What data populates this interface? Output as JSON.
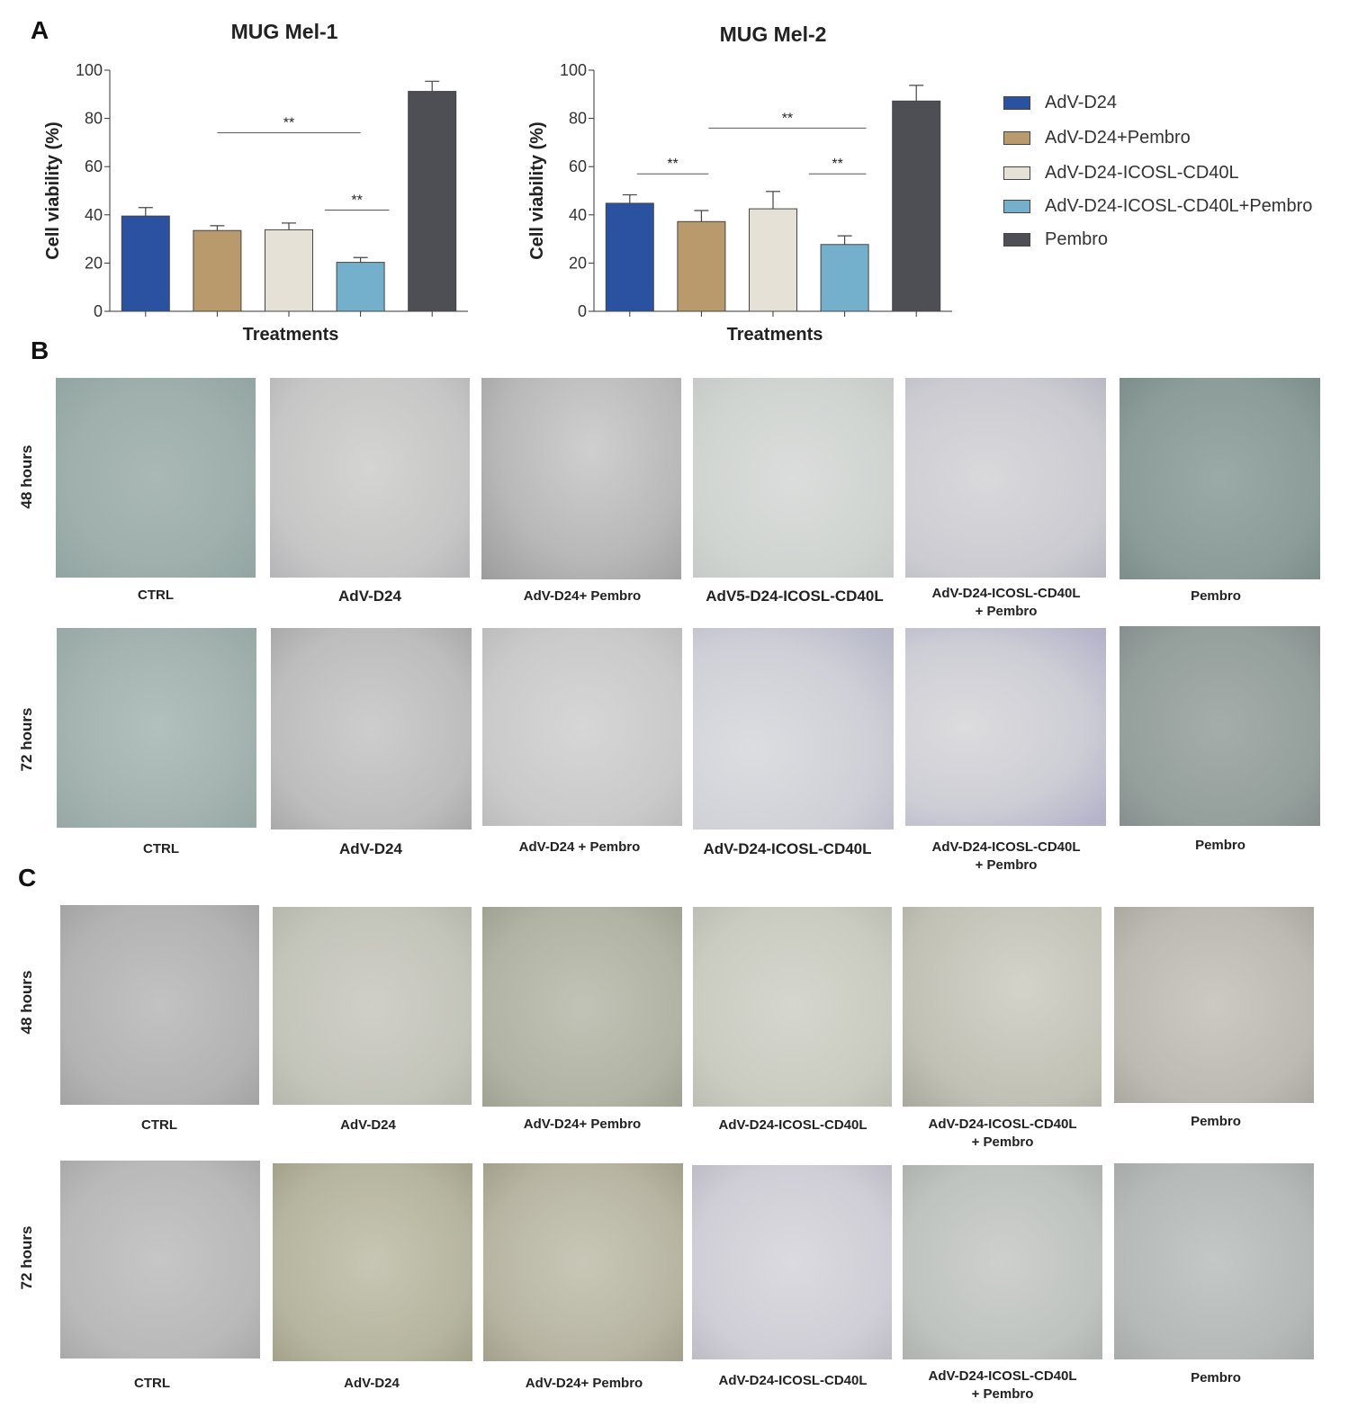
{
  "panel_letters": {
    "a": "A",
    "b": "B",
    "c": "C"
  },
  "chart_data": [
    {
      "type": "bar",
      "title": "MUG Mel-1",
      "xlabel": "Treatments",
      "ylabel": "Cell viability (%)",
      "ylim": [
        0,
        100
      ],
      "yticks": [
        0,
        20,
        40,
        60,
        80,
        100
      ],
      "categories": [
        "AdV-D24",
        "AdV-D24+Pembro",
        "AdV-D24-ICOSL-CD40L",
        "AdV-D24-ICOSL-CD40L+Pembro",
        "Pembro"
      ],
      "values": [
        39.5,
        33.5,
        33.8,
        20.3,
        91.2
      ],
      "errors": [
        3.5,
        2.0,
        2.8,
        2.0,
        4.2
      ],
      "colors": [
        "#2b52a0",
        "#b89a6c",
        "#e6e1d7",
        "#74b0cc",
        "#4d4f54"
      ],
      "significance": [
        {
          "from": 1,
          "to": 3,
          "y": 74,
          "label": "**"
        },
        {
          "from": 2.5,
          "to": 3.4,
          "y": 42,
          "label": "**"
        }
      ]
    },
    {
      "type": "bar",
      "title": "MUG Mel-2",
      "xlabel": "Treatments",
      "ylabel": "Cell viability (%)",
      "ylim": [
        0,
        100
      ],
      "yticks": [
        0,
        20,
        40,
        60,
        80,
        100
      ],
      "categories": [
        "AdV-D24",
        "AdV-D24+Pembro",
        "AdV-D24-ICOSL-CD40L",
        "AdV-D24-ICOSL-CD40L+Pembro",
        "Pembro"
      ],
      "values": [
        44.8,
        37.2,
        42.5,
        27.7,
        87.2
      ],
      "errors": [
        3.5,
        4.6,
        7.2,
        3.6,
        6.5
      ],
      "colors": [
        "#2b52a0",
        "#b89a6c",
        "#e6e1d7",
        "#74b0cc",
        "#4d4f54"
      ],
      "significance": [
        {
          "from": 0.1,
          "to": 1.1,
          "y": 57,
          "label": "**"
        },
        {
          "from": 1.1,
          "to": 3.3,
          "y": 76,
          "label": "**"
        },
        {
          "from": 2.5,
          "to": 3.3,
          "y": 57,
          "label": "**"
        }
      ]
    }
  ],
  "legend": [
    {
      "label": "AdV-D24",
      "color": "#2b52a0"
    },
    {
      "label": "AdV-D24+Pembro",
      "color": "#b89a6c"
    },
    {
      "label": "AdV-D24-ICOSL-CD40L",
      "color": "#e6e1d7"
    },
    {
      "label": "AdV-D24-ICOSL-CD40L+Pembro",
      "color": "#74b0cc"
    },
    {
      "label": "Pembro",
      "color": "#4d4f54"
    }
  ],
  "panel_b": {
    "row_48_label": "48 hours",
    "row_72_label": "72 hours",
    "row_48_captions": [
      "CTRL",
      "AdV-D24",
      "AdV-D24+ Pembro",
      "AdV5-D24-ICOSL-CD40L",
      "AdV-D24-ICOSL-CD40L\n+ Pembro",
      "Pembro"
    ],
    "row_72_captions": [
      "CTRL",
      "AdV-D24",
      "AdV-D24 + Pembro",
      "AdV-D24-ICOSL-CD40L",
      "AdV-D24-ICOSL-CD40L\n+ Pembro",
      "Pembro"
    ]
  },
  "panel_c": {
    "row_48_label": "48 hours",
    "row_72_label": "72 hours",
    "row_48_captions": [
      "CTRL",
      "AdV-D24",
      "AdV-D24+ Pembro",
      "AdV-D24-ICOSL-CD40L",
      "AdV-D24-ICOSL-CD40L\n+ Pembro",
      "Pembro"
    ],
    "row_72_captions": [
      "CTRL",
      "AdV-D24",
      "AdV-D24+ Pembro",
      "AdV-D24-ICOSL-CD40L",
      "AdV-D24-ICOSL-CD40L\n+ Pembro",
      "Pembro"
    ]
  }
}
